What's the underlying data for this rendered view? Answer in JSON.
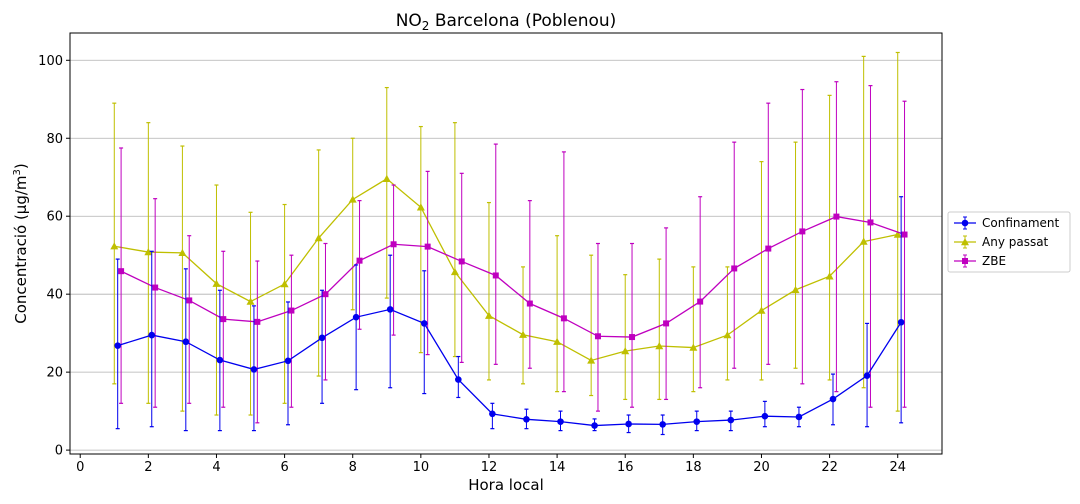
{
  "chart_data": {
    "type": "line",
    "title_prefix": "NO",
    "title_sub": "2",
    "title_suffix": " Barcelona (Poblenou)",
    "xlabel": "Hora local",
    "ylabel_prefix": "Concentració (µg/m",
    "ylabel_sup": "3",
    "ylabel_suffix": ")",
    "xlim": [
      -0.3,
      25.3
    ],
    "ylim": [
      -1,
      107
    ],
    "xticks": [
      0,
      2,
      4,
      6,
      8,
      10,
      12,
      14,
      16,
      18,
      20,
      22,
      24
    ],
    "xtick_labels": [
      "0",
      "2",
      "4",
      "6",
      "8",
      "10",
      "12",
      "14",
      "16",
      "18",
      "20",
      "22",
      "24"
    ],
    "yticks": [
      0,
      20,
      40,
      60,
      80,
      100
    ],
    "ytick_labels": [
      "0",
      "20",
      "40",
      "60",
      "80",
      "100"
    ],
    "grid": "y",
    "legend_position": "right-outside",
    "x": [
      1,
      2,
      3,
      4,
      5,
      6,
      7,
      8,
      9,
      10,
      11,
      12,
      13,
      14,
      15,
      16,
      17,
      18,
      19,
      20,
      21,
      22,
      23,
      24
    ],
    "series": [
      {
        "name": "Confinament",
        "color": "#0000ee",
        "marker": "circle",
        "x_offset": 0.1,
        "values": [
          26.8,
          29.5,
          27.8,
          23.1,
          20.7,
          22.9,
          28.8,
          34.1,
          36.1,
          32.5,
          18.1,
          9.3,
          7.9,
          7.3,
          6.3,
          6.7,
          6.6,
          7.3,
          7.7,
          8.7,
          8.5,
          13.1,
          19.1,
          32.8
        ],
        "upper": [
          49,
          51,
          46.5,
          41,
          37,
          38,
          41,
          47.5,
          50,
          46,
          24,
          12,
          10.5,
          10,
          8,
          9,
          9,
          10,
          10,
          12.5,
          11,
          19.5,
          32.5,
          65
        ],
        "lower": [
          5.5,
          6,
          5,
          5,
          5,
          6.5,
          12,
          15.5,
          16,
          14.5,
          13.5,
          5.5,
          5.5,
          5,
          5,
          4.5,
          4,
          5,
          5,
          6,
          6,
          6.5,
          6,
          7
        ]
      },
      {
        "name": "Any passat",
        "color": "#bfbf00",
        "marker": "triangle",
        "x_offset": 0,
        "values": [
          52.3,
          50.8,
          50.6,
          42.7,
          38.1,
          42.6,
          54.4,
          64.3,
          69.6,
          62.3,
          45.7,
          34.5,
          29.6,
          27.8,
          23.0,
          25.4,
          26.7,
          26.3,
          29.5,
          35.8,
          41.1,
          44.6,
          53.5,
          55.3
        ],
        "upper": [
          89,
          84,
          78,
          68,
          61,
          63,
          77,
          80,
          93,
          83,
          84,
          63.5,
          47,
          55,
          50,
          45,
          49,
          47,
          47,
          74,
          79,
          91,
          101,
          102
        ],
        "lower": [
          17,
          12,
          10,
          9,
          9,
          12,
          19,
          36,
          39,
          25,
          24,
          18,
          17,
          15,
          14,
          13,
          13,
          15,
          18,
          18,
          21,
          18,
          16,
          10
        ]
      },
      {
        "name": "ZBE",
        "color": "#bf00bf",
        "marker": "square",
        "x_offset": 0.2,
        "values": [
          45.9,
          41.7,
          38.4,
          33.6,
          32.9,
          35.8,
          40.0,
          48.6,
          52.8,
          52.2,
          48.4,
          44.8,
          37.6,
          33.8,
          29.2,
          29.0,
          32.5,
          38.1,
          46.6,
          51.7,
          56.1,
          59.9,
          58.4,
          55.3
        ],
        "upper": [
          77.5,
          64.5,
          55,
          51,
          48.5,
          50,
          53,
          64,
          68,
          71.5,
          71,
          78.5,
          64,
          76.5,
          53,
          53,
          57,
          65,
          79,
          89,
          92.5,
          94.5,
          93.5,
          89.5
        ],
        "lower": [
          12,
          11,
          12,
          11,
          7,
          11,
          18,
          31,
          29.5,
          24.5,
          22.5,
          22,
          21,
          15,
          10,
          11,
          13,
          16,
          21,
          22,
          17,
          15,
          11,
          11
        ]
      }
    ]
  }
}
